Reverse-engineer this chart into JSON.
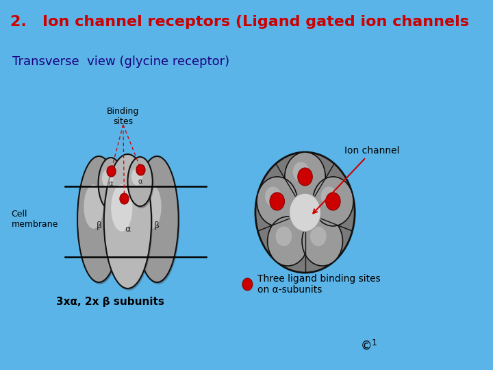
{
  "bg_color": "#5ab4e8",
  "title_color": "#cc0000",
  "title_text": "2.   Ion channel receptors (Ligand gated ion channels",
  "subtitle_text": "Transverse  view (glycine receptor)",
  "subtitle_color": "#1a0080",
  "cell_membrane_label": "Cell\nmembrane",
  "binding_sites_label": "Binding\nsites",
  "subunits_label": "3xα, 2x β subunits",
  "ion_channel_label": "Ion channel",
  "legend_label": "Three ligand binding sites\non α-subunits",
  "copyright_text": "©",
  "superscript_text": "1",
  "subunit_gray_dark": "#888888",
  "subunit_gray_mid": "#aaaaaa",
  "subunit_gray_light": "#cccccc",
  "subunit_gray_shine": "#e8e8e8",
  "red_dot": "#cc0000",
  "black_edge": "#111111",
  "channel_outer": "#888888",
  "channel_mid": "#aaaaaa",
  "channel_inner": "#d8d8d8"
}
